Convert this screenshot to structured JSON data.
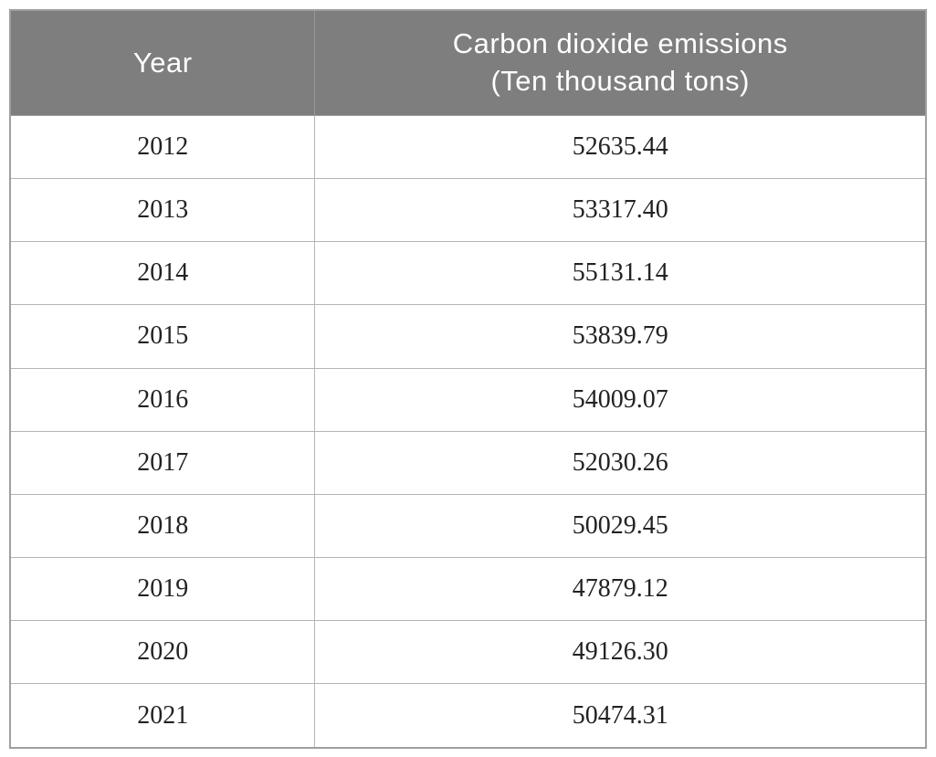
{
  "table": {
    "headers": {
      "year": "Year",
      "emissions_line1": "Carbon dioxide emissions",
      "emissions_line2": "(Ten thousand tons)"
    },
    "rows": [
      {
        "year": "2012",
        "value": "52635.44"
      },
      {
        "year": "2013",
        "value": "53317.40"
      },
      {
        "year": "2014",
        "value": "55131.14"
      },
      {
        "year": "2015",
        "value": "53839.79"
      },
      {
        "year": "2016",
        "value": "54009.07"
      },
      {
        "year": "2017",
        "value": "52030.26"
      },
      {
        "year": "2018",
        "value": "50029.45"
      },
      {
        "year": "2019",
        "value": "47879.12"
      },
      {
        "year": "2020",
        "value": "49126.30"
      },
      {
        "year": "2021",
        "value": "50474.31"
      }
    ]
  },
  "colors": {
    "header_background": "#7e7e7e",
    "header_text": "#ffffff",
    "body_text": "#222222",
    "grid_border": "#b5b5b5",
    "outer_border": "#9f9f9f"
  },
  "chart_data": {
    "type": "table",
    "title": "",
    "columns": [
      "Year",
      "Carbon dioxide emissions (Ten thousand tons)"
    ],
    "categories": [
      "2012",
      "2013",
      "2014",
      "2015",
      "2016",
      "2017",
      "2018",
      "2019",
      "2020",
      "2021"
    ],
    "values": [
      52635.44,
      53317.4,
      55131.14,
      53839.79,
      54009.07,
      52030.26,
      50029.45,
      47879.12,
      49126.3,
      50474.31
    ],
    "xlabel": "Year",
    "ylabel": "Carbon dioxide emissions (Ten thousand tons)"
  }
}
